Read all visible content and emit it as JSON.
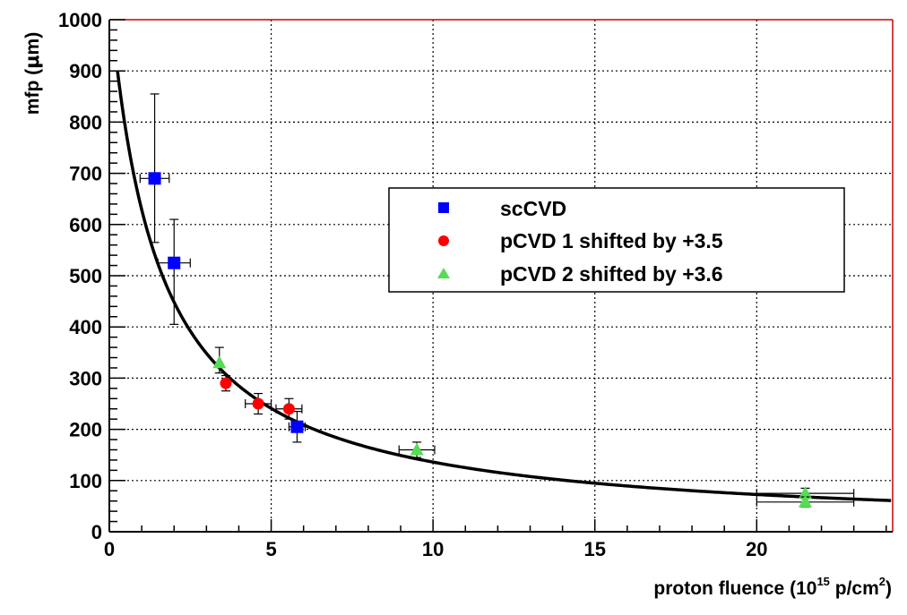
{
  "chart_data": {
    "type": "scatter",
    "xlabel": {
      "main": "proton fluence (10",
      "sup": "15",
      "mid": " p/cm",
      "sup2": "2",
      "end": ")"
    },
    "ylabel": {
      "main": "mfp (",
      "mu": "μ",
      "end": "m)"
    },
    "xlim": [
      0,
      24.2
    ],
    "ylim": [
      0,
      1000
    ],
    "xticks": [
      0,
      5,
      10,
      15,
      20
    ],
    "xtick_labels": [
      "0",
      "5",
      "10",
      "15",
      "20"
    ],
    "yticks": [
      0,
      100,
      200,
      300,
      400,
      500,
      600,
      700,
      800,
      900,
      1000
    ],
    "ytick_labels": [
      "0",
      "100",
      "200",
      "300",
      "400",
      "500",
      "600",
      "700",
      "800",
      "900",
      "1000"
    ],
    "grid": true,
    "legend_placement": "center-right",
    "series": [
      {
        "name": "scCVD",
        "marker": "square",
        "color": "#0000ff",
        "points": [
          {
            "x": 1.4,
            "y": 690,
            "xerr": 0.45,
            "yerr": [
              125,
              165
            ]
          },
          {
            "x": 2.0,
            "y": 525,
            "xerr": 0.5,
            "yerr": [
              120,
              85
            ]
          },
          {
            "x": 5.8,
            "y": 205,
            "xerr": 0.25,
            "yerr": [
              30,
              30
            ]
          }
        ]
      },
      {
        "name": "pCVD 1 shifted by +3.5",
        "marker": "circle",
        "color": "#ff0000",
        "points": [
          {
            "x": 3.6,
            "y": 290,
            "xerr": 0.0,
            "yerr": [
              15,
              15
            ]
          },
          {
            "x": 4.6,
            "y": 250,
            "xerr": 0.4,
            "yerr": [
              20,
              20
            ]
          },
          {
            "x": 5.55,
            "y": 240,
            "xerr": 0.4,
            "yerr": [
              20,
              20
            ]
          }
        ]
      },
      {
        "name": "pCVD 2 shifted by +3.6",
        "marker": "triangle",
        "color": "#55dd55",
        "points": [
          {
            "x": 3.4,
            "y": 330,
            "xerr": 0.0,
            "yerr": [
              20,
              30
            ]
          },
          {
            "x": 9.5,
            "y": 160,
            "xerr": 0.55,
            "yerr": [
              15,
              15
            ]
          },
          {
            "x": 21.5,
            "y": 75,
            "xerr": 1.5,
            "yerr": [
              10,
              10
            ]
          },
          {
            "x": 21.5,
            "y": 58,
            "xerr": 1.5,
            "yerr": [
              10,
              10
            ]
          }
        ]
      }
    ],
    "fit_curve": {
      "description": "1/(a + b*x)",
      "a": 0.00095,
      "b": 0.00064,
      "color": "#000000"
    },
    "frame_colors": {
      "left": "#000000",
      "bottom": "#000000",
      "right": "#cc0000",
      "top": "#cc0000",
      "grid": "#000000"
    }
  }
}
